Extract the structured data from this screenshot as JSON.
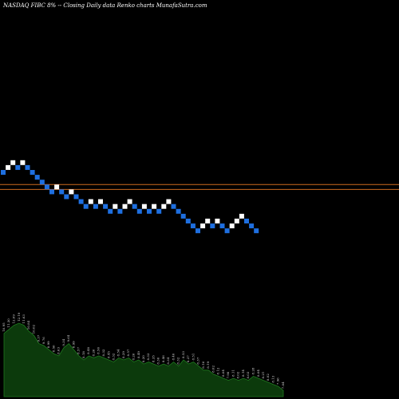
{
  "header": {
    "title": "NASDAQ FIBC 8% -- Closing Daily data Renko charts MunafaSutra.com"
  },
  "colors": {
    "background": "#000000",
    "up_brick": "#ffffff",
    "down_brick": "#1e6fe0",
    "ref_line": "#cc6a1e",
    "volume_fill": "#0c3a0c",
    "volume_outline": "#1f7a1f"
  },
  "chart_data": [
    {
      "type": "renko",
      "title": "NASDAQ FIBC 8% -- Closing Daily data Renko charts MunafaSutra.com",
      "brick_size_percent": 8,
      "bricks": [
        {
          "x": 1,
          "level": 10,
          "dir": "down"
        },
        {
          "x": 2,
          "level": 11,
          "dir": "up"
        },
        {
          "x": 3,
          "level": 12,
          "dir": "up"
        },
        {
          "x": 4,
          "level": 11,
          "dir": "down"
        },
        {
          "x": 5,
          "level": 12,
          "dir": "up"
        },
        {
          "x": 6,
          "level": 11,
          "dir": "down"
        },
        {
          "x": 7,
          "level": 10,
          "dir": "down"
        },
        {
          "x": 8,
          "level": 9,
          "dir": "down"
        },
        {
          "x": 9,
          "level": 8,
          "dir": "down"
        },
        {
          "x": 10,
          "level": 7,
          "dir": "down"
        },
        {
          "x": 11,
          "level": 6,
          "dir": "down"
        },
        {
          "x": 12,
          "level": 7,
          "dir": "up"
        },
        {
          "x": 13,
          "level": 6,
          "dir": "down"
        },
        {
          "x": 14,
          "level": 5,
          "dir": "down"
        },
        {
          "x": 15,
          "level": 6,
          "dir": "up"
        },
        {
          "x": 16,
          "level": 5,
          "dir": "down"
        },
        {
          "x": 17,
          "level": 4,
          "dir": "down"
        },
        {
          "x": 18,
          "level": 3,
          "dir": "down"
        },
        {
          "x": 19,
          "level": 4,
          "dir": "up"
        },
        {
          "x": 20,
          "level": 3,
          "dir": "down"
        },
        {
          "x": 21,
          "level": 4,
          "dir": "up"
        },
        {
          "x": 22,
          "level": 3,
          "dir": "down"
        },
        {
          "x": 23,
          "level": 2,
          "dir": "down"
        },
        {
          "x": 24,
          "level": 3,
          "dir": "up"
        },
        {
          "x": 25,
          "level": 2,
          "dir": "down"
        },
        {
          "x": 26,
          "level": 3,
          "dir": "up"
        },
        {
          "x": 27,
          "level": 4,
          "dir": "up"
        },
        {
          "x": 28,
          "level": 3,
          "dir": "down"
        },
        {
          "x": 29,
          "level": 2,
          "dir": "down"
        },
        {
          "x": 30,
          "level": 3,
          "dir": "up"
        },
        {
          "x": 31,
          "level": 2,
          "dir": "down"
        },
        {
          "x": 32,
          "level": 3,
          "dir": "up"
        },
        {
          "x": 33,
          "level": 2,
          "dir": "down"
        },
        {
          "x": 34,
          "level": 3,
          "dir": "up"
        },
        {
          "x": 35,
          "level": 4,
          "dir": "up"
        },
        {
          "x": 36,
          "level": 3,
          "dir": "down"
        },
        {
          "x": 37,
          "level": 2,
          "dir": "down"
        },
        {
          "x": 38,
          "level": 1,
          "dir": "down"
        },
        {
          "x": 39,
          "level": 0,
          "dir": "down"
        },
        {
          "x": 40,
          "level": -1,
          "dir": "down"
        },
        {
          "x": 41,
          "level": -2,
          "dir": "down"
        },
        {
          "x": 42,
          "level": -1,
          "dir": "up"
        },
        {
          "x": 43,
          "level": 0,
          "dir": "up"
        },
        {
          "x": 44,
          "level": -1,
          "dir": "down"
        },
        {
          "x": 45,
          "level": 0,
          "dir": "up"
        },
        {
          "x": 46,
          "level": -1,
          "dir": "down"
        },
        {
          "x": 47,
          "level": -2,
          "dir": "down"
        },
        {
          "x": 48,
          "level": -1,
          "dir": "up"
        },
        {
          "x": 49,
          "level": 0,
          "dir": "up"
        },
        {
          "x": 50,
          "level": 1,
          "dir": "up"
        },
        {
          "x": 51,
          "level": 0,
          "dir": "down"
        },
        {
          "x": 52,
          "level": -1,
          "dir": "down"
        },
        {
          "x": 53,
          "level": -2,
          "dir": "down"
        }
      ],
      "reference_lines": [
        7.5,
        6.5
      ],
      "volume_labels": [
        "10.95",
        "11.30",
        "12.09",
        "12.19",
        "11.63",
        "10.84",
        "10.02",
        "9.37",
        "9.76",
        "8.99",
        "8.56",
        "8.63",
        "9.34",
        "9.64",
        "8.99",
        "8.57",
        "8.18",
        "8.48",
        "8.26",
        "8.56",
        "8.32",
        "8.45",
        "8.32",
        "8.54",
        "8.29",
        "8.57",
        "8.26",
        "8.49",
        "8.20",
        "8.33",
        "8.35",
        "8.30",
        "8.46",
        "8.34",
        "8.40",
        "8.32",
        "8.53",
        "8.37",
        "8.51",
        "8.37",
        "8.16",
        "8.19",
        "8.02",
        "8.12",
        "8.04",
        "7.98",
        "8.11",
        "8.02",
        "8.14",
        "8.03",
        "8.28",
        "8.04",
        "8.21",
        "8.02",
        "8.13",
        "7.96",
        "7.84"
      ],
      "volume_values": [
        62,
        66,
        70,
        72,
        70,
        64,
        60,
        52,
        50,
        46,
        42,
        40,
        48,
        52,
        46,
        40,
        36,
        40,
        38,
        40,
        38,
        36,
        34,
        38,
        36,
        38,
        34,
        36,
        32,
        34,
        32,
        30,
        32,
        30,
        34,
        30,
        36,
        32,
        34,
        30,
        26,
        26,
        22,
        20,
        18,
        16,
        18,
        16,
        18,
        16,
        20,
        18,
        16,
        14,
        12,
        10,
        6
      ]
    }
  ]
}
